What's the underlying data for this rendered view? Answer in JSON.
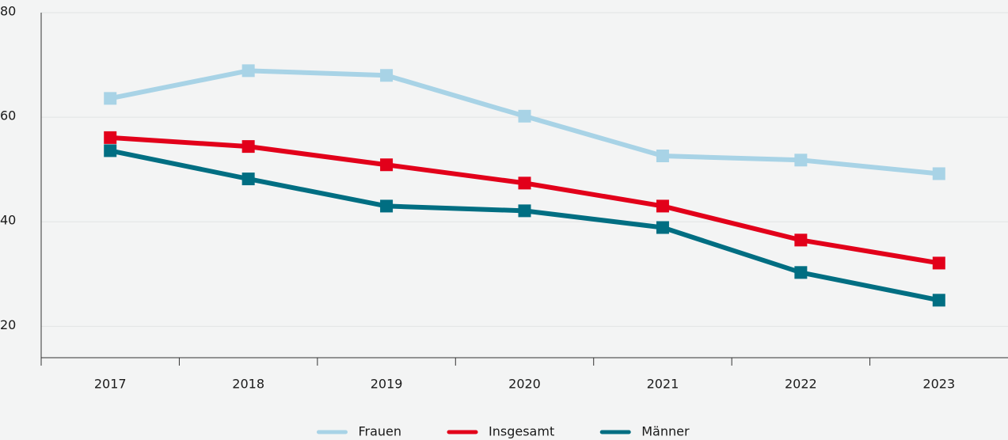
{
  "chart_data": {
    "type": "line",
    "categories": [
      "2017",
      "2018",
      "2019",
      "2020",
      "2021",
      "2022",
      "2023"
    ],
    "series": [
      {
        "name": "Frauen",
        "color": "#a8d3e6",
        "values": [
          63.6,
          68.9,
          68.0,
          60.2,
          52.6,
          51.8,
          49.2
        ]
      },
      {
        "name": "Insgesamt",
        "color": "#e2001a",
        "values": [
          56.1,
          54.4,
          50.9,
          47.4,
          43.0,
          36.5,
          32.1
        ]
      },
      {
        "name": "Männer",
        "color": "#006e82",
        "values": [
          53.6,
          48.2,
          43.0,
          42.1,
          38.9,
          30.3,
          25.0
        ]
      }
    ],
    "ylim": [
      14,
      80
    ],
    "yticks": [
      20,
      40,
      60,
      80
    ],
    "grid": true,
    "legend": "bottom"
  }
}
